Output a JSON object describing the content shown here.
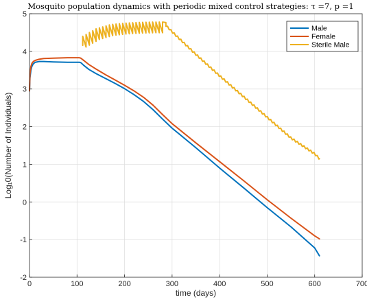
{
  "chart_data": {
    "type": "line",
    "title": "Mosquito population dynamics with periodic mixed control strategies: τ =7, p =1",
    "xlabel": "time (days)",
    "ylabel": "Log₁0(Number of Individuals)",
    "xlim": [
      0,
      700
    ],
    "ylim": [
      -2,
      5
    ],
    "xticks": [
      0,
      100,
      200,
      300,
      400,
      500,
      600,
      700
    ],
    "yticks": [
      -2,
      -1,
      0,
      1,
      2,
      3,
      4,
      5
    ],
    "grid": true,
    "legend_position": "top-right",
    "series": [
      {
        "name": "Male",
        "color": "#0072BD",
        "x": [
          0,
          1,
          3,
          5,
          8,
          12,
          16,
          20,
          30,
          50,
          80,
          100,
          105,
          108,
          115,
          125,
          140,
          160,
          180,
          200,
          220,
          240,
          260,
          280,
          300,
          350,
          400,
          450,
          500,
          550,
          600,
          610
        ],
        "y": [
          2.95,
          3.3,
          3.5,
          3.6,
          3.67,
          3.71,
          3.72,
          3.73,
          3.73,
          3.72,
          3.71,
          3.71,
          3.71,
          3.7,
          3.62,
          3.52,
          3.41,
          3.28,
          3.15,
          3.01,
          2.85,
          2.67,
          2.45,
          2.2,
          1.96,
          1.44,
          0.9,
          0.38,
          -0.15,
          -0.66,
          -1.22,
          -1.43
        ]
      },
      {
        "name": "Female",
        "color": "#D95319",
        "x": [
          0,
          1,
          3,
          5,
          8,
          12,
          20,
          30,
          50,
          80,
          100,
          105,
          108,
          115,
          125,
          140,
          160,
          180,
          200,
          220,
          240,
          260,
          280,
          300,
          350,
          400,
          450,
          500,
          550,
          600,
          610
        ],
        "y": [
          2.95,
          3.4,
          3.6,
          3.68,
          3.73,
          3.76,
          3.79,
          3.81,
          3.82,
          3.83,
          3.83,
          3.83,
          3.82,
          3.75,
          3.65,
          3.53,
          3.38,
          3.24,
          3.1,
          2.95,
          2.78,
          2.57,
          2.32,
          2.08,
          1.57,
          1.07,
          0.57,
          0.06,
          -0.43,
          -0.9,
          -0.98
        ]
      },
      {
        "name": "Sterile Male",
        "color": "#EDB120",
        "pulse_period": 7,
        "pulse_start": 112,
        "pulse_end": 280,
        "x": [
          112,
          140,
          170,
          200,
          230,
          260,
          280,
          300,
          350,
          400,
          450,
          500,
          550,
          600,
          610
        ],
        "y": [
          4.4,
          4.6,
          4.71,
          4.75,
          4.77,
          4.78,
          4.78,
          4.52,
          3.92,
          3.35,
          2.8,
          2.25,
          1.7,
          1.28,
          1.15
        ],
        "sawtooth_drop": 0.3
      }
    ]
  }
}
